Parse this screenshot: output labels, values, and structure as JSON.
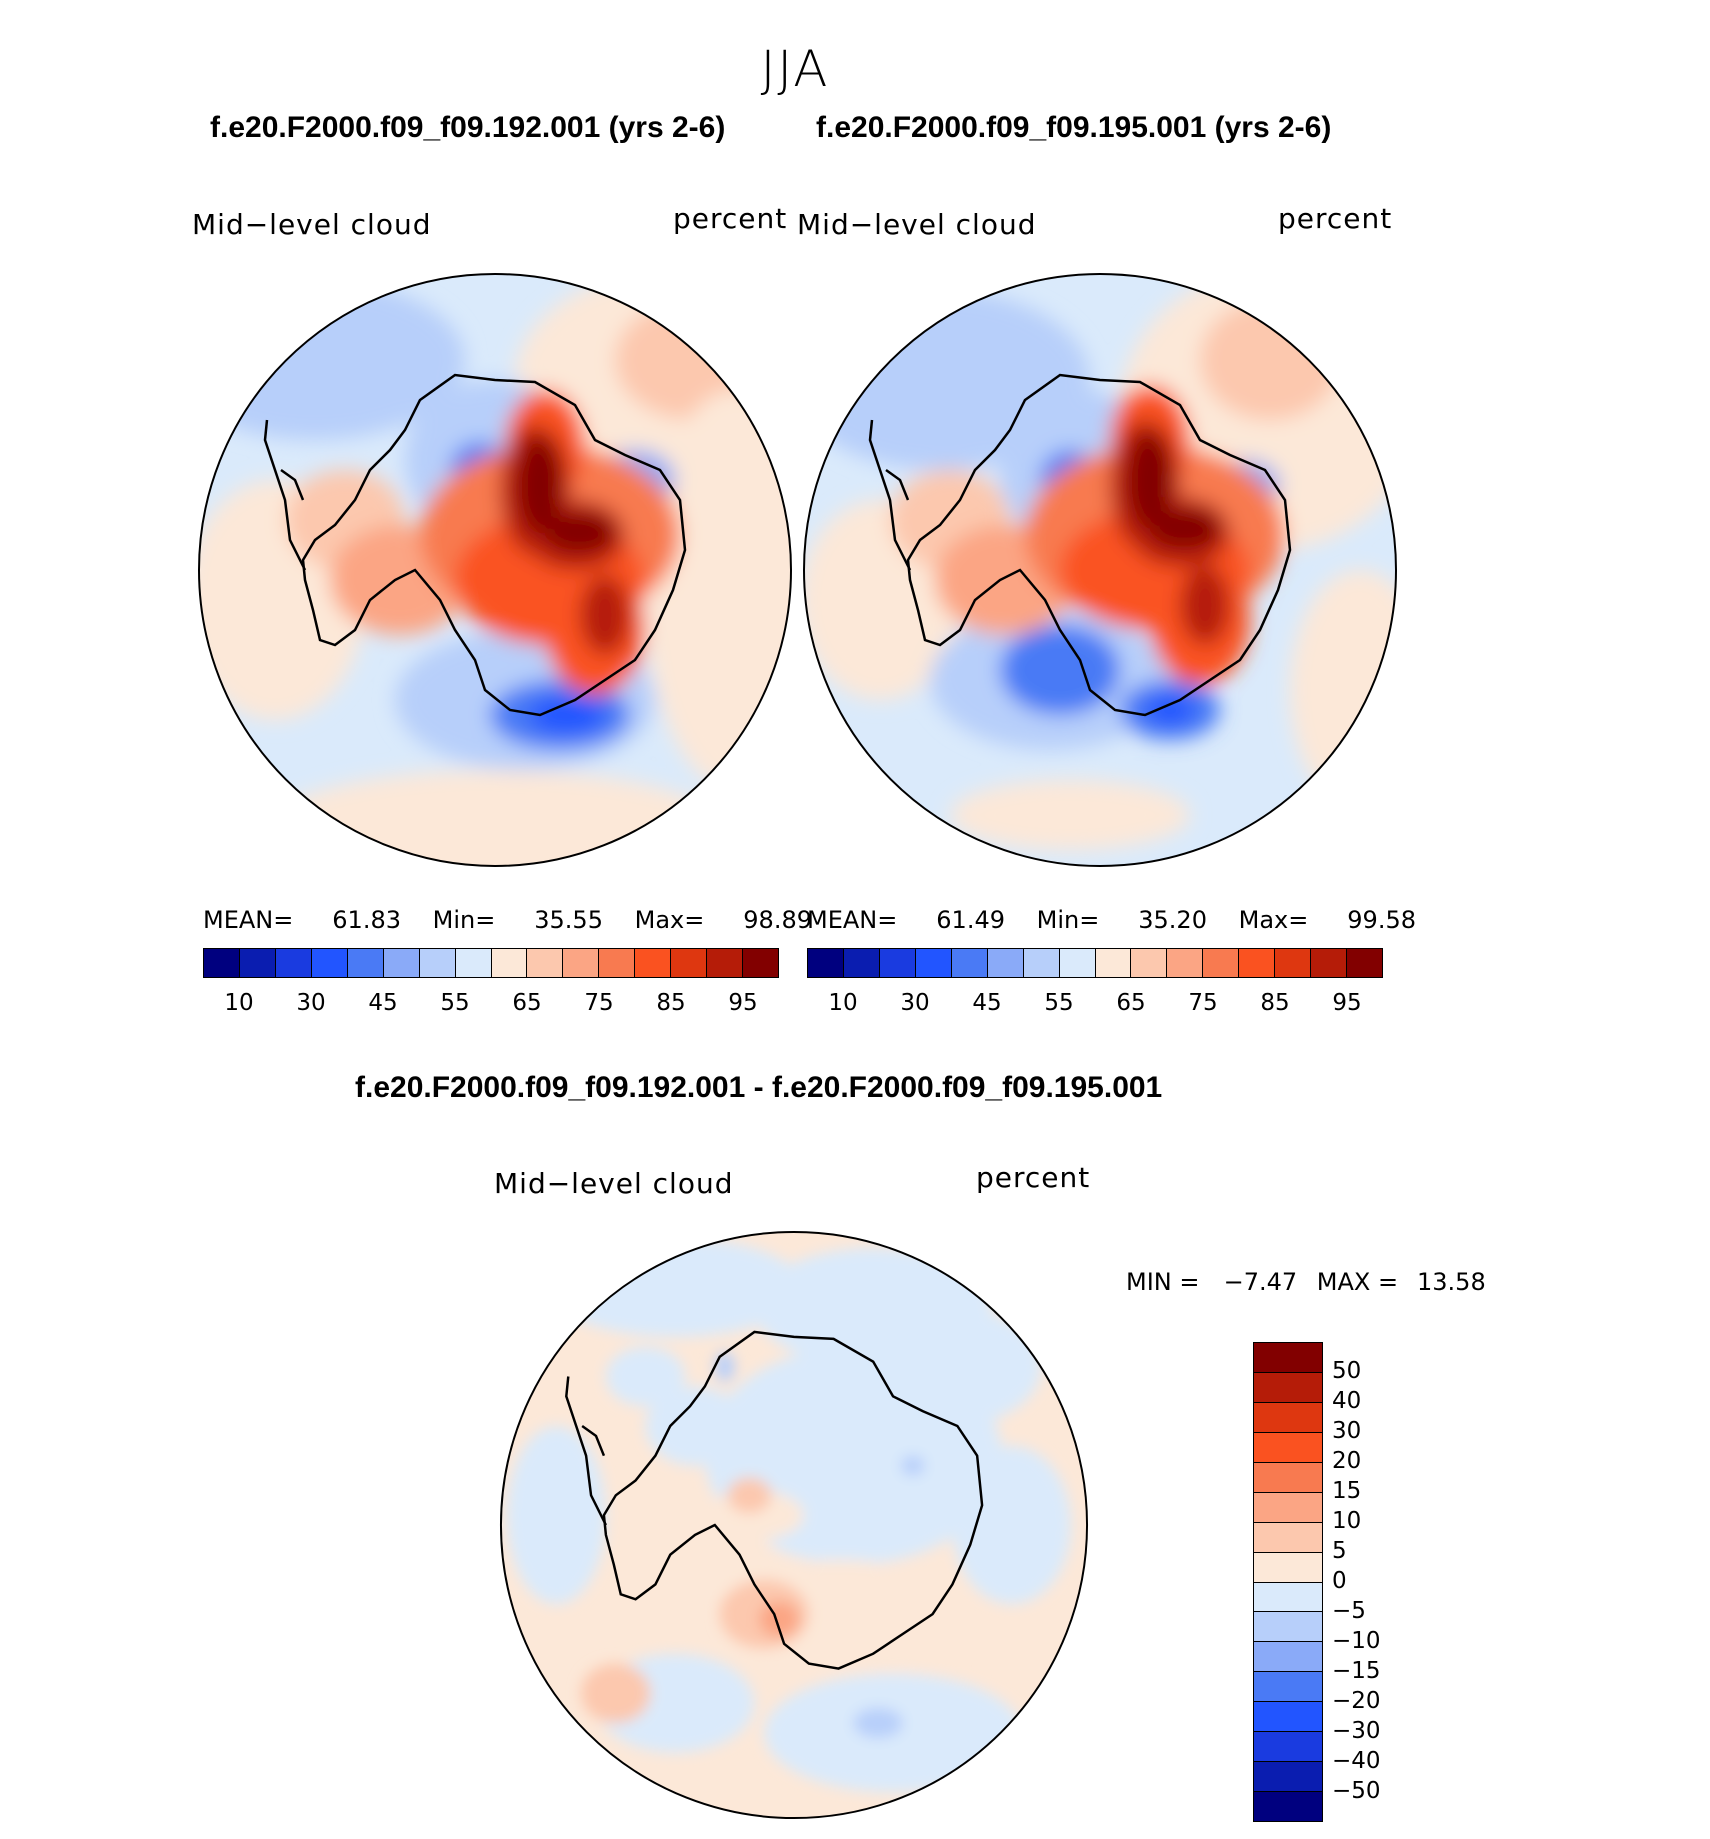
{
  "season": "JJA",
  "panels": [
    {
      "case_title": "f.e20.F2000.f09_f09.192.001 (yrs 2-6)",
      "variable": "Mid−level  cloud",
      "units": "percent",
      "stats": {
        "mean_label": "MEAN=",
        "mean": "61.83",
        "min_label": "Min=",
        "min": "35.55",
        "max_label": "Max=",
        "max": "98.89"
      }
    },
    {
      "case_title": "f.e20.F2000.f09_f09.195.001 (yrs 2-6)",
      "variable": "Mid−level  cloud",
      "units": "percent",
      "stats": {
        "mean_label": "MEAN=",
        "mean": "61.49",
        "min_label": "Min=",
        "min": "35.20",
        "max_label": "Max=",
        "max": "99.58"
      }
    }
  ],
  "diff_panel": {
    "title": "f.e20.F2000.f09_f09.192.001 - f.e20.F2000.f09_f09.195.001",
    "variable": "Mid−level  cloud",
    "units": "percent",
    "min_label": "MIN =",
    "min": "−7.47",
    "max_label": "MAX =",
    "max": "13.58"
  },
  "abs_colorbar": {
    "colors": [
      "#00007f",
      "#0a1db0",
      "#1a3be0",
      "#2255ff",
      "#4a7af5",
      "#8aaaf8",
      "#b7cffa",
      "#daeafb",
      "#fce8d8",
      "#fcc8ae",
      "#fba584",
      "#f87a50",
      "#fa5220",
      "#de3710",
      "#b51c08",
      "#820000"
    ],
    "labels": [
      "10",
      "30",
      "45",
      "55",
      "65",
      "75",
      "85",
      "95"
    ]
  },
  "diff_colorbar": {
    "colors": [
      "#820000",
      "#b51c08",
      "#de3710",
      "#fa5220",
      "#f87a50",
      "#fba584",
      "#fcc8ae",
      "#fce8d8",
      "#daeafb",
      "#b7cffa",
      "#8aaaf8",
      "#4a7af5",
      "#2255ff",
      "#1a3be0",
      "#0a1db0",
      "#00007f"
    ],
    "labels": [
      "50",
      "40",
      "30",
      "20",
      "15",
      "10",
      "5",
      "0",
      "−5",
      "−10",
      "−15",
      "−20",
      "−30",
      "−40",
      "−50"
    ]
  }
}
